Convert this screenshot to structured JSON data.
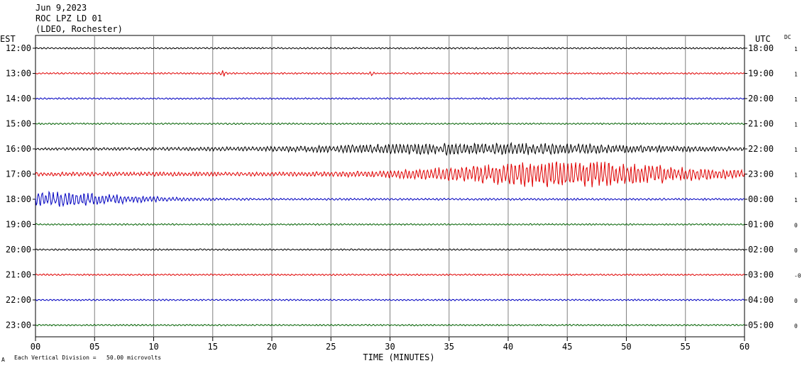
{
  "header": {
    "date": "Jun 9,2023",
    "station": "ROC LPZ LD 01",
    "network": "(LDEO, Rochester)"
  },
  "left_axis_label": "EST",
  "right_axis_label": "UTC",
  "dc_label": "DC",
  "footer": {
    "mark": "A",
    "note": "Each Vertical Division =   50.00 microvolts"
  },
  "chart_data": {
    "type": "line",
    "title": "",
    "xlabel": "TIME (MINUTES)",
    "x_ticks": [
      "00",
      "05",
      "10",
      "15",
      "20",
      "25",
      "30",
      "35",
      "40",
      "45",
      "50",
      "55",
      "60"
    ],
    "xlim": [
      0,
      60
    ],
    "grid": true,
    "trace_colors": [
      "#000000",
      "#e00000",
      "#0000c0",
      "#006000"
    ],
    "traces": [
      {
        "est": "12:00",
        "utc": "18:00",
        "dc": "1",
        "color": "#000000",
        "amp": 1.2,
        "events": []
      },
      {
        "est": "13:00",
        "utc": "19:00",
        "dc": "1",
        "color": "#e00000",
        "amp": 1.2,
        "events": [
          [
            15.9,
            0.4,
            4
          ],
          [
            28.5,
            0.3,
            3
          ]
        ]
      },
      {
        "est": "14:00",
        "utc": "20:00",
        "dc": "1",
        "color": "#0000c0",
        "amp": 1.2,
        "events": []
      },
      {
        "est": "15:00",
        "utc": "21:00",
        "dc": "1",
        "color": "#006000",
        "amp": 1.2,
        "events": []
      },
      {
        "est": "16:00",
        "utc": "22:00",
        "dc": "1",
        "color": "#000000",
        "amp": 2.0,
        "events": [
          [
            38,
            25,
            7
          ]
        ]
      },
      {
        "est": "17:00",
        "utc": "23:00",
        "dc": "1",
        "color": "#e00000",
        "amp": 3.0,
        "events": [
          [
            45,
            18,
            17
          ]
        ]
      },
      {
        "est": "18:00",
        "utc": "00:00",
        "dc": "1",
        "color": "#0000c0",
        "amp": 1.5,
        "events": [
          [
            0,
            14,
            10
          ]
        ]
      },
      {
        "est": "19:00",
        "utc": "01:00",
        "dc": "0",
        "color": "#006000",
        "amp": 1.2,
        "events": []
      },
      {
        "est": "20:00",
        "utc": "02:00",
        "dc": "0",
        "color": "#000000",
        "amp": 1.2,
        "events": []
      },
      {
        "est": "21:00",
        "utc": "03:00",
        "dc": "-0",
        "color": "#e00000",
        "amp": 1.2,
        "events": []
      },
      {
        "est": "22:00",
        "utc": "04:00",
        "dc": "0",
        "color": "#0000c0",
        "amp": 1.2,
        "events": []
      },
      {
        "est": "23:00",
        "utc": "05:00",
        "dc": "0",
        "color": "#006000",
        "amp": 1.2,
        "events": []
      }
    ]
  }
}
